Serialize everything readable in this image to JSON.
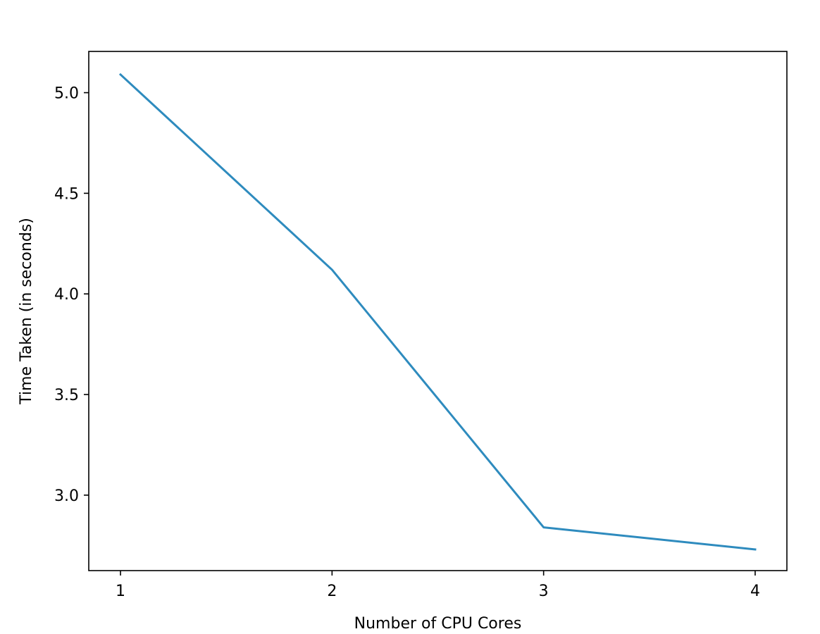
{
  "chart_data": {
    "type": "line",
    "title": "",
    "xlabel": "Number of CPU Cores",
    "ylabel": "Time Taken (in seconds)",
    "x": [
      1,
      2,
      3,
      4
    ],
    "series": [
      {
        "values": [
          5.09,
          4.12,
          2.84,
          2.73
        ],
        "color": "#2e8bbe"
      }
    ],
    "xlim": [
      0.85,
      4.15
    ],
    "ylim": [
      2.625,
      5.205
    ],
    "xticks": [
      1,
      2,
      3,
      4
    ],
    "xtick_labels": [
      "1",
      "2",
      "3",
      "4"
    ],
    "yticks": [
      3.0,
      3.5,
      4.0,
      4.5,
      5.0
    ],
    "ytick_labels": [
      "3.0",
      "3.5",
      "4.0",
      "4.5",
      "5.0"
    ],
    "grid": false,
    "legend": "none"
  }
}
